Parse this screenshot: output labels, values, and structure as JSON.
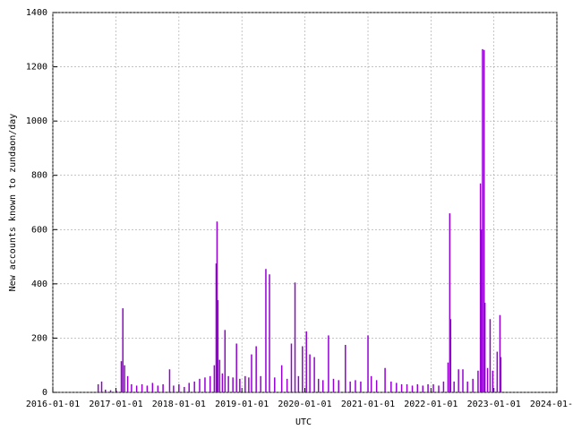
{
  "chart_data": {
    "type": "impulse",
    "xlabel": "UTC",
    "ylabel": "New accounts known to zundaon/day",
    "color": "#9400d3",
    "grid": true,
    "xlim": [
      "2016-01-01",
      "2024-01-01"
    ],
    "xticks": [
      "2016-01-01",
      "2017-01-01",
      "2018-01-01",
      "2019-01-01",
      "2020-01-01",
      "2021-01-01",
      "2022-01-01",
      "2023-01-01",
      "2024-01-01"
    ],
    "ylim": [
      0,
      1400
    ],
    "yticks": [
      0,
      200,
      400,
      600,
      800,
      1000,
      1200,
      1400
    ],
    "x": [
      "2016-09-20",
      "2016-10-10",
      "2016-11-01",
      "2016-12-01",
      "2017-01-05",
      "2017-02-01",
      "2017-02-10",
      "2017-02-20",
      "2017-03-10",
      "2017-04-01",
      "2017-05-01",
      "2017-06-01",
      "2017-07-01",
      "2017-08-01",
      "2017-09-01",
      "2017-10-01",
      "2017-11-08",
      "2017-12-01",
      "2018-01-01",
      "2018-02-01",
      "2018-03-01",
      "2018-04-01",
      "2018-05-01",
      "2018-06-01",
      "2018-07-01",
      "2018-07-25",
      "2018-08-05",
      "2018-08-10",
      "2018-08-15",
      "2018-08-25",
      "2018-09-10",
      "2018-09-25",
      "2018-10-15",
      "2018-11-10",
      "2018-12-01",
      "2018-12-20",
      "2019-01-20",
      "2019-02-10",
      "2019-02-26",
      "2019-03-25",
      "2019-04-20",
      "2019-05-20",
      "2019-06-10",
      "2019-07-10",
      "2019-08-20",
      "2019-09-20",
      "2019-10-15",
      "2019-11-05",
      "2019-11-25",
      "2019-12-18",
      "2020-01-10",
      "2020-01-30",
      "2020-02-25",
      "2020-03-20",
      "2020-04-15",
      "2020-05-17",
      "2020-06-15",
      "2020-07-15",
      "2020-08-23",
      "2020-09-20",
      "2020-10-20",
      "2020-11-20",
      "2021-01-01",
      "2021-01-20",
      "2021-02-20",
      "2021-04-10",
      "2021-05-15",
      "2021-06-15",
      "2021-07-15",
      "2021-08-15",
      "2021-09-15",
      "2021-10-15",
      "2021-11-15",
      "2021-12-15",
      "2022-01-15",
      "2022-02-15",
      "2022-03-15",
      "2022-04-10",
      "2022-04-20",
      "2022-04-25",
      "2022-05-15",
      "2022-06-10",
      "2022-07-05",
      "2022-08-01",
      "2022-09-01",
      "2022-10-01",
      "2022-10-15",
      "2022-10-22",
      "2022-10-27",
      "2022-11-05",
      "2022-11-10",
      "2022-11-25",
      "2022-12-10",
      "2022-12-25",
      "2023-01-20",
      "2023-02-05",
      "2023-02-10"
    ],
    "values": [
      30,
      40,
      10,
      8,
      5,
      115,
      310,
      100,
      60,
      30,
      25,
      30,
      25,
      35,
      25,
      30,
      85,
      25,
      30,
      20,
      35,
      40,
      50,
      55,
      60,
      100,
      475,
      630,
      340,
      120,
      70,
      230,
      60,
      55,
      180,
      50,
      60,
      55,
      140,
      170,
      60,
      455,
      435,
      55,
      100,
      50,
      180,
      405,
      60,
      170,
      225,
      140,
      130,
      50,
      45,
      210,
      50,
      45,
      175,
      40,
      45,
      40,
      210,
      60,
      45,
      90,
      40,
      35,
      30,
      30,
      25,
      30,
      25,
      30,
      30,
      25,
      40,
      110,
      660,
      270,
      40,
      85,
      85,
      40,
      50,
      80,
      770,
      600,
      1265,
      1262,
      330,
      90,
      270,
      80,
      150,
      285,
      130
    ]
  }
}
